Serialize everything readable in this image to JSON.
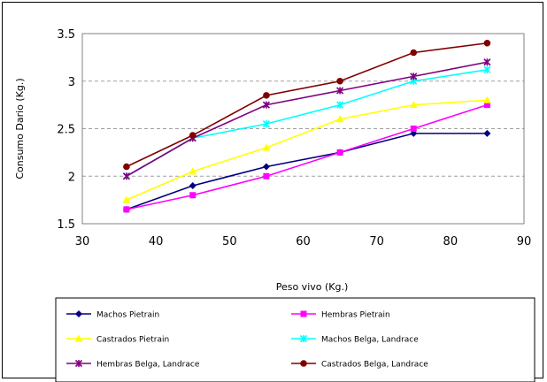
{
  "chart_data": {
    "type": "line",
    "title": "",
    "xlabel": "Peso vivo (Kg.)",
    "ylabel": "Consumo Dario (Kg.)",
    "xlim": [
      30,
      90
    ],
    "ylim": [
      1.5,
      3.5
    ],
    "xticks": [
      "30",
      "40",
      "50",
      "60",
      "70",
      "80",
      "90"
    ],
    "yticks": [
      "1.5",
      "2",
      "2.5",
      "3",
      "3.5"
    ],
    "grid": "horizontal dashed",
    "legend_placement": "bottom",
    "x": [
      36,
      45,
      55,
      65,
      75,
      85
    ],
    "series": [
      {
        "name": "Machos Pietrain",
        "color": "#000080",
        "marker": "diamond",
        "values": [
          1.65,
          1.9,
          2.1,
          2.25,
          2.45,
          2.45
        ]
      },
      {
        "name": "Hembras Pietrain",
        "color": "#ff00ff",
        "marker": "square",
        "values": [
          1.65,
          1.8,
          2.0,
          2.25,
          2.5,
          2.75
        ]
      },
      {
        "name": "Castrados Pietrain",
        "color": "#ffff00",
        "marker": "triangle",
        "values": [
          1.75,
          2.05,
          2.3,
          2.6,
          2.75,
          2.8
        ]
      },
      {
        "name": "Machos Belga, Landrace",
        "color": "#00ffff",
        "marker": "x",
        "values": [
          2.0,
          2.4,
          2.55,
          2.75,
          3.0,
          3.12
        ]
      },
      {
        "name": "Hembras Belga, Landrace",
        "color": "#800080",
        "marker": "x",
        "values": [
          2.0,
          2.4,
          2.75,
          2.9,
          3.05,
          3.2
        ]
      },
      {
        "name": "Castrados Belga, Landrace",
        "color": "#800000",
        "marker": "circle",
        "values": [
          2.1,
          2.43,
          2.85,
          3.0,
          3.3,
          3.4
        ]
      }
    ]
  }
}
